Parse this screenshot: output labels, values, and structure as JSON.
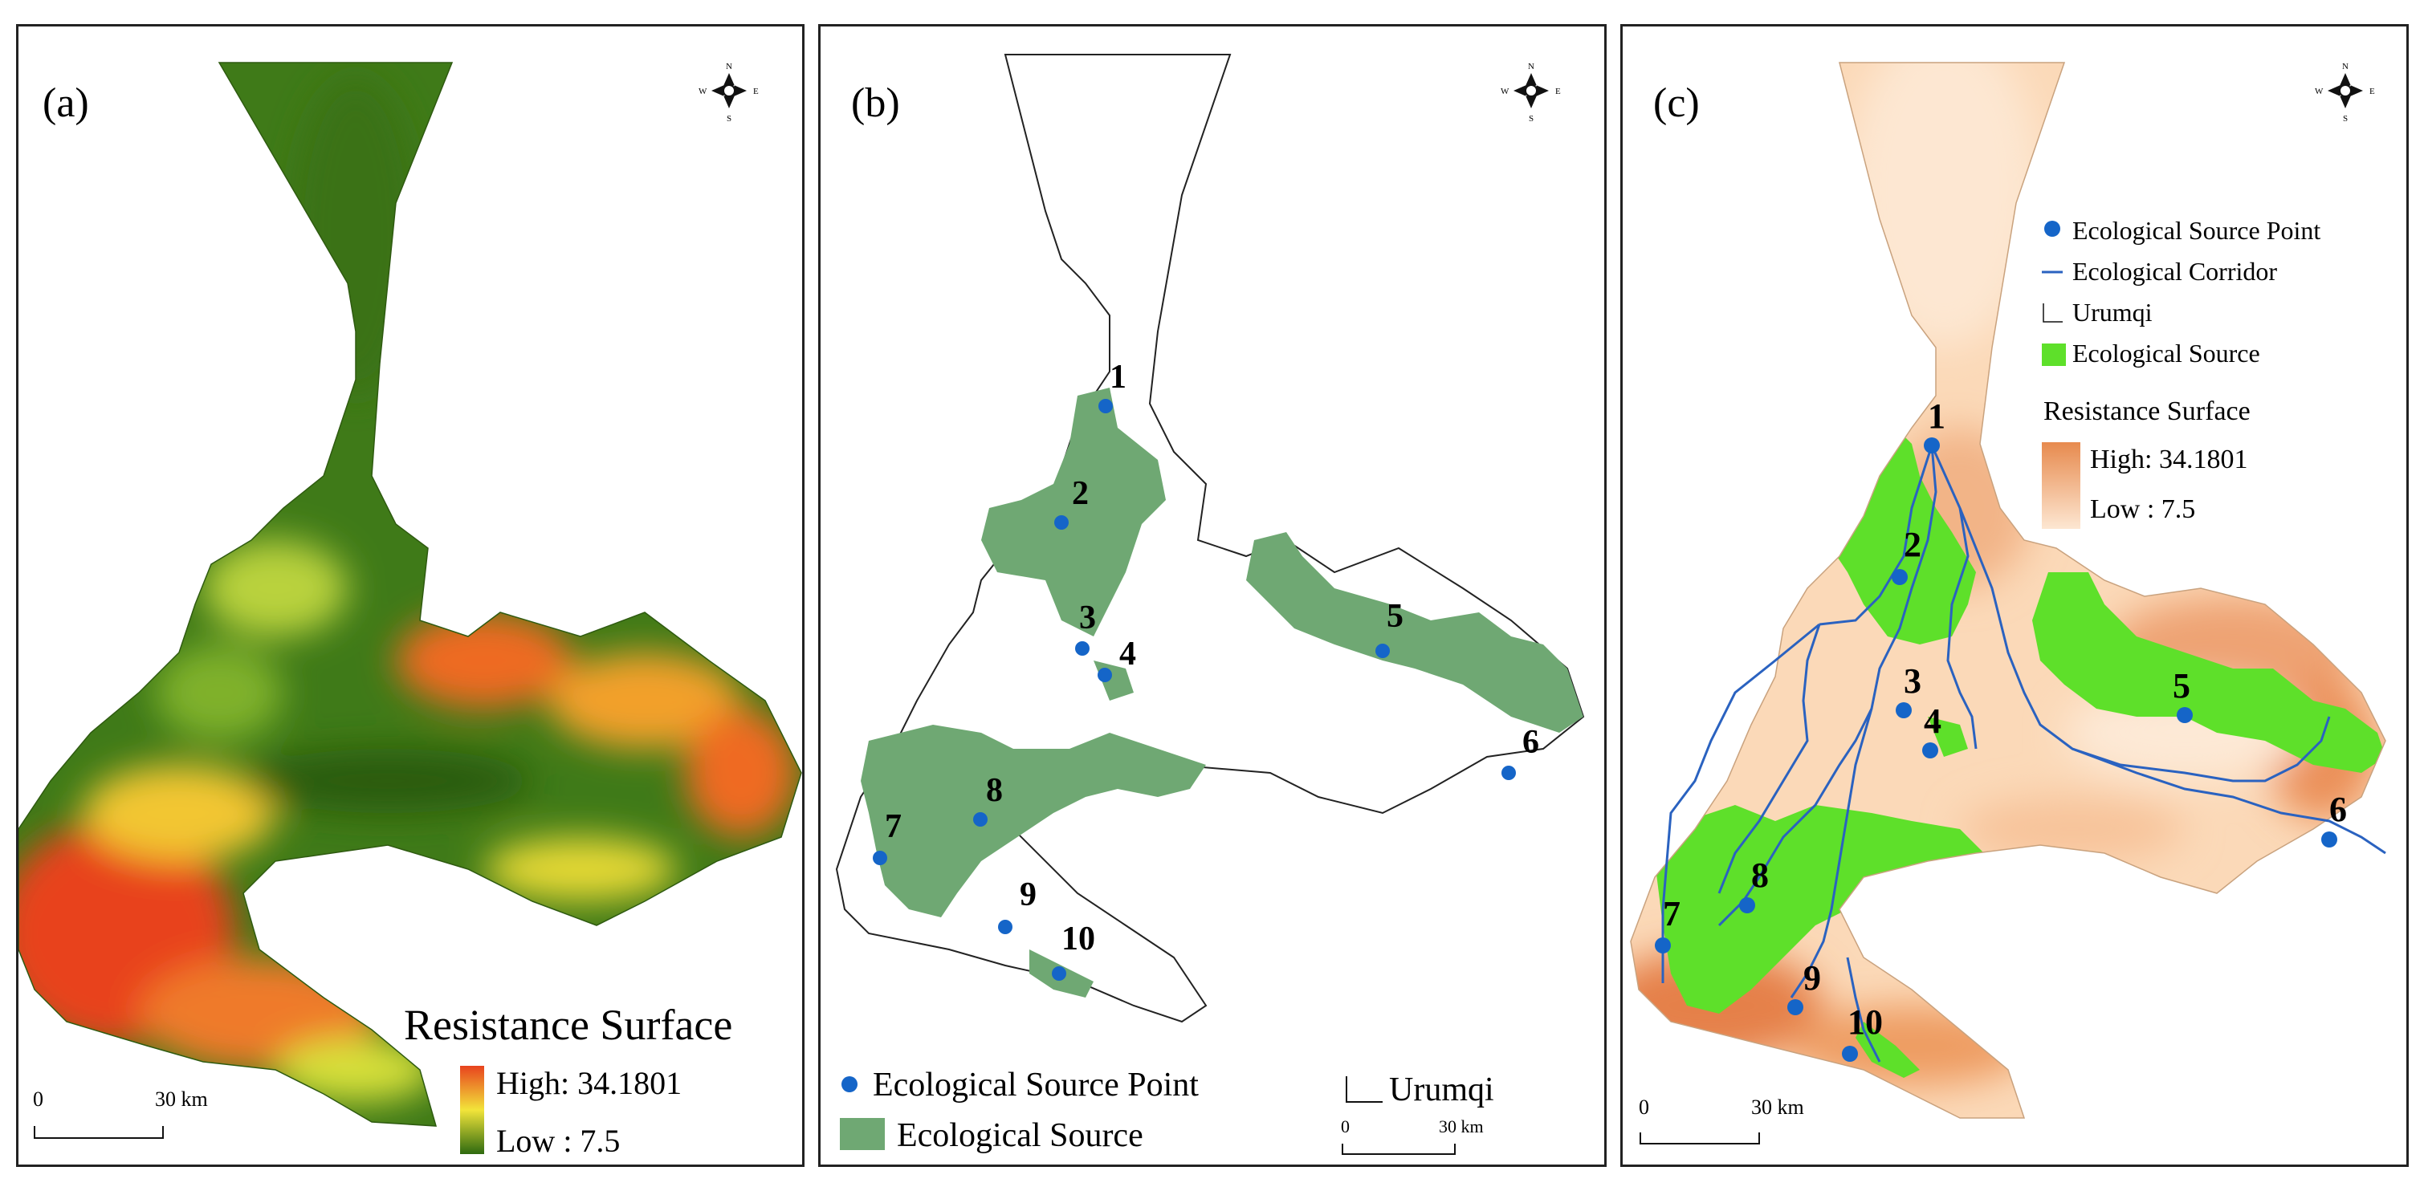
{
  "panels": [
    {
      "label": "(a)",
      "legend": {
        "title": "Resistance Surface",
        "high": "High: 34.1801",
        "low": "Low : 7.5"
      },
      "scale": {
        "zero": "0",
        "distance": "30 km"
      },
      "compass": {
        "n": "N",
        "s": "S",
        "e": "E",
        "w": "W"
      },
      "colors": {
        "high": "#e8431e",
        "mid": "#f2e43a",
        "low": "#2e6a10"
      }
    },
    {
      "label": "(b)",
      "legend": {
        "point": "Ecological Source Point",
        "source": "Ecological Source",
        "boundary": "Urumqi"
      },
      "scale": {
        "zero": "0",
        "distance": "30 km"
      },
      "compass": {
        "n": "N",
        "s": "S",
        "e": "E",
        "w": "W"
      },
      "colors": {
        "source": "#6fa873",
        "point": "#1565c8"
      }
    },
    {
      "label": "(c)",
      "legend": {
        "point": "Ecological Source Point",
        "corridor": "Ecological Corridor",
        "boundary": "Urumqi",
        "source": "Ecological Source",
        "resistance_title": "Resistance Surface",
        "high": "High: 34.1801",
        "low": "Low : 7.5"
      },
      "scale": {
        "zero": "0",
        "distance": "30 km"
      },
      "compass": {
        "n": "N",
        "s": "S",
        "e": "E",
        "w": "W"
      },
      "colors": {
        "source": "#5ee02a",
        "point": "#1565c8",
        "corridor": "#2a62c0",
        "high": "#e78a4e",
        "low": "#fde7d2"
      }
    }
  ],
  "source_points": [
    "1",
    "2",
    "3",
    "4",
    "5",
    "6",
    "7",
    "8",
    "9",
    "10"
  ]
}
